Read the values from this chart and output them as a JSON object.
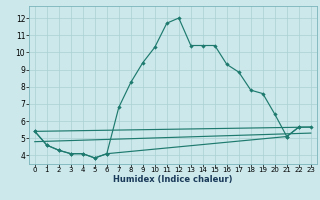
{
  "xlabel": "Humidex (Indice chaleur)",
  "bg_color": "#cce8eb",
  "grid_color": "#aad0d4",
  "line_color": "#1e7a6e",
  "xlim": [
    -0.5,
    23.5
  ],
  "ylim": [
    3.5,
    12.7
  ],
  "xticks": [
    0,
    1,
    2,
    3,
    4,
    5,
    6,
    7,
    8,
    9,
    10,
    11,
    12,
    13,
    14,
    15,
    16,
    17,
    18,
    19,
    20,
    21,
    22,
    23
  ],
  "yticks": [
    4,
    5,
    6,
    7,
    8,
    9,
    10,
    11,
    12
  ],
  "line1_x": [
    0,
    1,
    2,
    3,
    4,
    5,
    6,
    7,
    8,
    9,
    10,
    11,
    12,
    13,
    14,
    15,
    16,
    17,
    18,
    19,
    20,
    21,
    22
  ],
  "line1_y": [
    5.4,
    4.6,
    4.3,
    4.1,
    4.1,
    3.85,
    4.1,
    6.8,
    8.25,
    9.4,
    10.3,
    11.7,
    12.0,
    10.4,
    10.4,
    10.4,
    9.3,
    8.85,
    7.8,
    7.6,
    6.4,
    5.1,
    5.65
  ],
  "line2_x": [
    0,
    1,
    2,
    3,
    4,
    5,
    6,
    21,
    22,
    23
  ],
  "line2_y": [
    5.4,
    4.6,
    4.3,
    4.1,
    4.1,
    3.85,
    4.1,
    5.1,
    5.65,
    5.65
  ],
  "line3_x": [
    0,
    23
  ],
  "line3_y": [
    5.4,
    5.65
  ],
  "line4_x": [
    0,
    23
  ],
  "line4_y": [
    4.8,
    5.3
  ],
  "xlabel_fontsize": 6,
  "tick_fontsize_x": 5,
  "tick_fontsize_y": 5.5
}
